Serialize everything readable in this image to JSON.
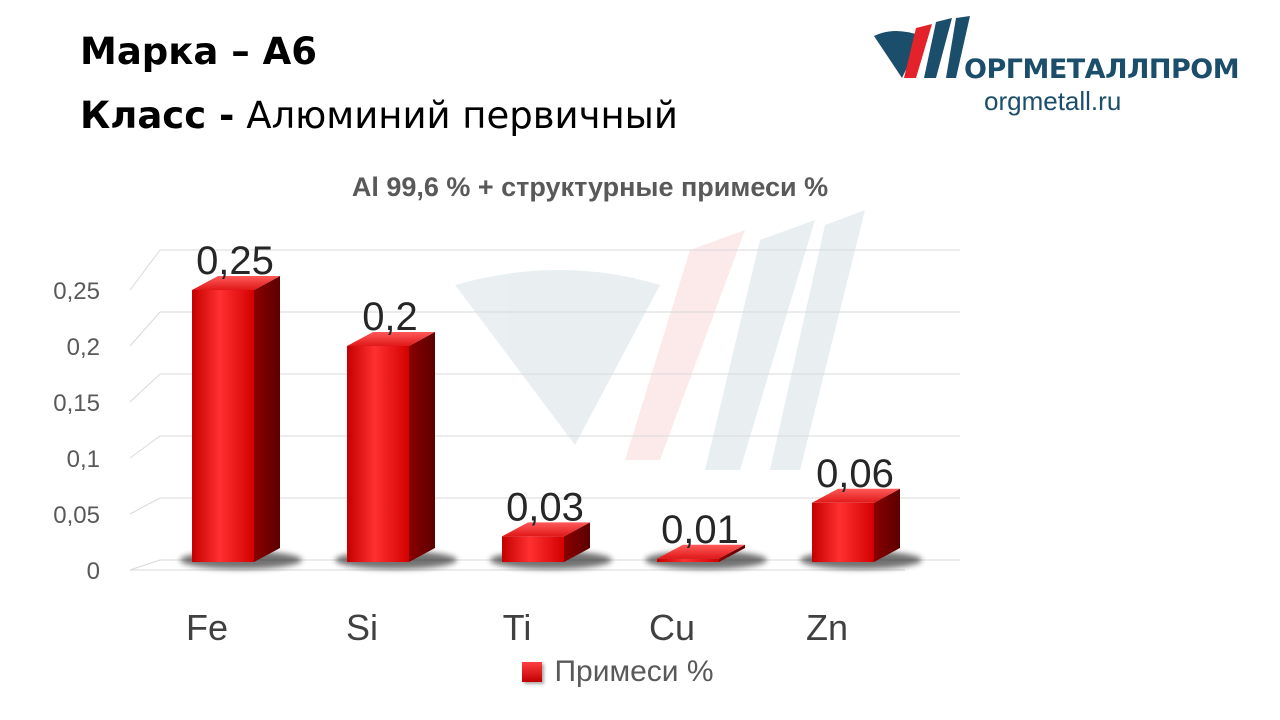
{
  "header": {
    "grade_line": "Марка – А6",
    "class_label": "Класс -",
    "class_value": "Алюминий первичный"
  },
  "logo": {
    "name": "ОРГМЕТАЛЛПРОМ",
    "site": "orgmetall.ru",
    "colors": {
      "teal": "#1b4e6b",
      "red": "#e3222a"
    }
  },
  "chart_data": {
    "type": "bar",
    "title": "Al 99,6 % + структурные примеси %",
    "categories": [
      "Fe",
      "Si",
      "Ti",
      "Cu",
      "Zn"
    ],
    "series": [
      {
        "name": "Примеси %",
        "values": [
          0.25,
          0.2,
          0.03,
          0.01,
          0.06
        ],
        "data_labels": [
          "0,25",
          "0,2",
          "0,03",
          "0,01",
          "0,06"
        ],
        "color": "#e31b1b"
      }
    ],
    "y_ticks": [
      0,
      0.05,
      0.1,
      0.15,
      0.2,
      0.25
    ],
    "y_tick_labels": [
      "0",
      "0,05",
      "0,1",
      "0,15",
      "0,2",
      "0,25"
    ],
    "ylim": [
      0,
      0.25
    ],
    "grid": true,
    "three_d": true,
    "legend": "bottom"
  }
}
